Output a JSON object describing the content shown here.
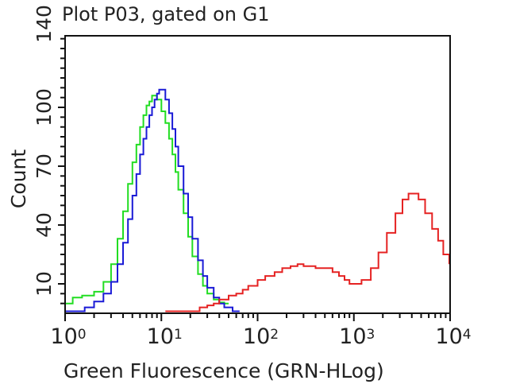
{
  "chart_data": {
    "type": "line",
    "title": "Plot P03, gated on G1",
    "xlabel": "Green Fluorescence (GRN-HLog)",
    "ylabel": "Count",
    "xscale": "log",
    "xlim": [
      1,
      10000
    ],
    "ylim": [
      -5,
      136.5
    ],
    "grid": false,
    "legend": null,
    "x_ticks": [
      {
        "base": "10",
        "exp": "0",
        "value": 1
      },
      {
        "base": "10",
        "exp": "1",
        "value": 10
      },
      {
        "base": "10",
        "exp": "2",
        "value": 100
      },
      {
        "base": "10",
        "exp": "3",
        "value": 1000
      },
      {
        "base": "10",
        "exp": "4",
        "value": 10000
      }
    ],
    "y_ticks": [
      "10",
      "40",
      "70",
      "100",
      "140"
    ],
    "y_tick_values": [
      10,
      40,
      70,
      100,
      140
    ],
    "series": [
      {
        "name": "green",
        "color": "#22dd22",
        "x": [
          1.0,
          1.2,
          1.5,
          2.0,
          2.5,
          3.0,
          3.5,
          4.0,
          4.5,
          5.0,
          5.5,
          6.0,
          6.5,
          7.0,
          7.5,
          8.0,
          8.5,
          9.0,
          10,
          11,
          12,
          13,
          14,
          15,
          17,
          19,
          21,
          24,
          27,
          30,
          35,
          40,
          45,
          50
        ],
        "y": [
          0,
          3,
          4,
          6,
          11,
          20,
          33,
          47,
          61,
          72,
          81,
          90,
          96,
          101,
          103,
          106,
          106,
          104,
          98,
          92,
          84,
          76,
          67,
          58,
          46,
          34,
          24,
          15,
          9,
          5,
          2,
          0.5,
          0,
          0
        ]
      },
      {
        "name": "blue",
        "color": "#1a1ad6",
        "x": [
          1.0,
          1.3,
          1.6,
          2.0,
          2.5,
          3.0,
          3.5,
          4.0,
          4.5,
          5.0,
          5.5,
          6.0,
          6.5,
          7.0,
          7.5,
          8.0,
          8.5,
          9.0,
          9.5,
          10,
          11,
          12,
          13,
          14,
          15,
          17,
          19,
          21,
          24,
          27,
          30,
          35,
          40,
          45,
          55,
          65
        ],
        "y": [
          -4,
          -4,
          -2,
          1,
          5,
          11,
          20,
          31,
          43,
          55,
          66,
          76,
          84,
          90,
          96,
          100,
          104,
          107,
          109,
          109,
          104,
          97,
          89,
          80,
          70,
          56,
          44,
          33,
          22,
          14,
          8,
          3,
          0,
          -2,
          -4,
          -4
        ]
      },
      {
        "name": "red",
        "color": "#e52222",
        "x": [
          11,
          15,
          20,
          25,
          30,
          35,
          40,
          50,
          60,
          70,
          80,
          100,
          120,
          150,
          180,
          220,
          260,
          300,
          400,
          500,
          600,
          700,
          800,
          900,
          1000,
          1200,
          1500,
          1800,
          2200,
          2700,
          3200,
          3700,
          4200,
          4700,
          5500,
          6500,
          7500,
          8500,
          9800
        ],
        "y": [
          -4,
          -4,
          -4,
          -2,
          -1,
          0,
          2,
          4,
          5,
          7,
          9,
          12,
          14,
          16,
          18,
          19,
          20,
          19,
          18,
          18,
          16,
          14,
          12,
          10,
          10,
          12,
          18,
          26,
          36,
          46,
          53,
          56,
          56,
          53,
          46,
          38,
          32,
          25,
          20
        ]
      }
    ]
  },
  "title": "Plot P03, gated on G1",
  "xlabel": "Green Fluorescence (GRN-HLog)",
  "ylabel": "Count"
}
